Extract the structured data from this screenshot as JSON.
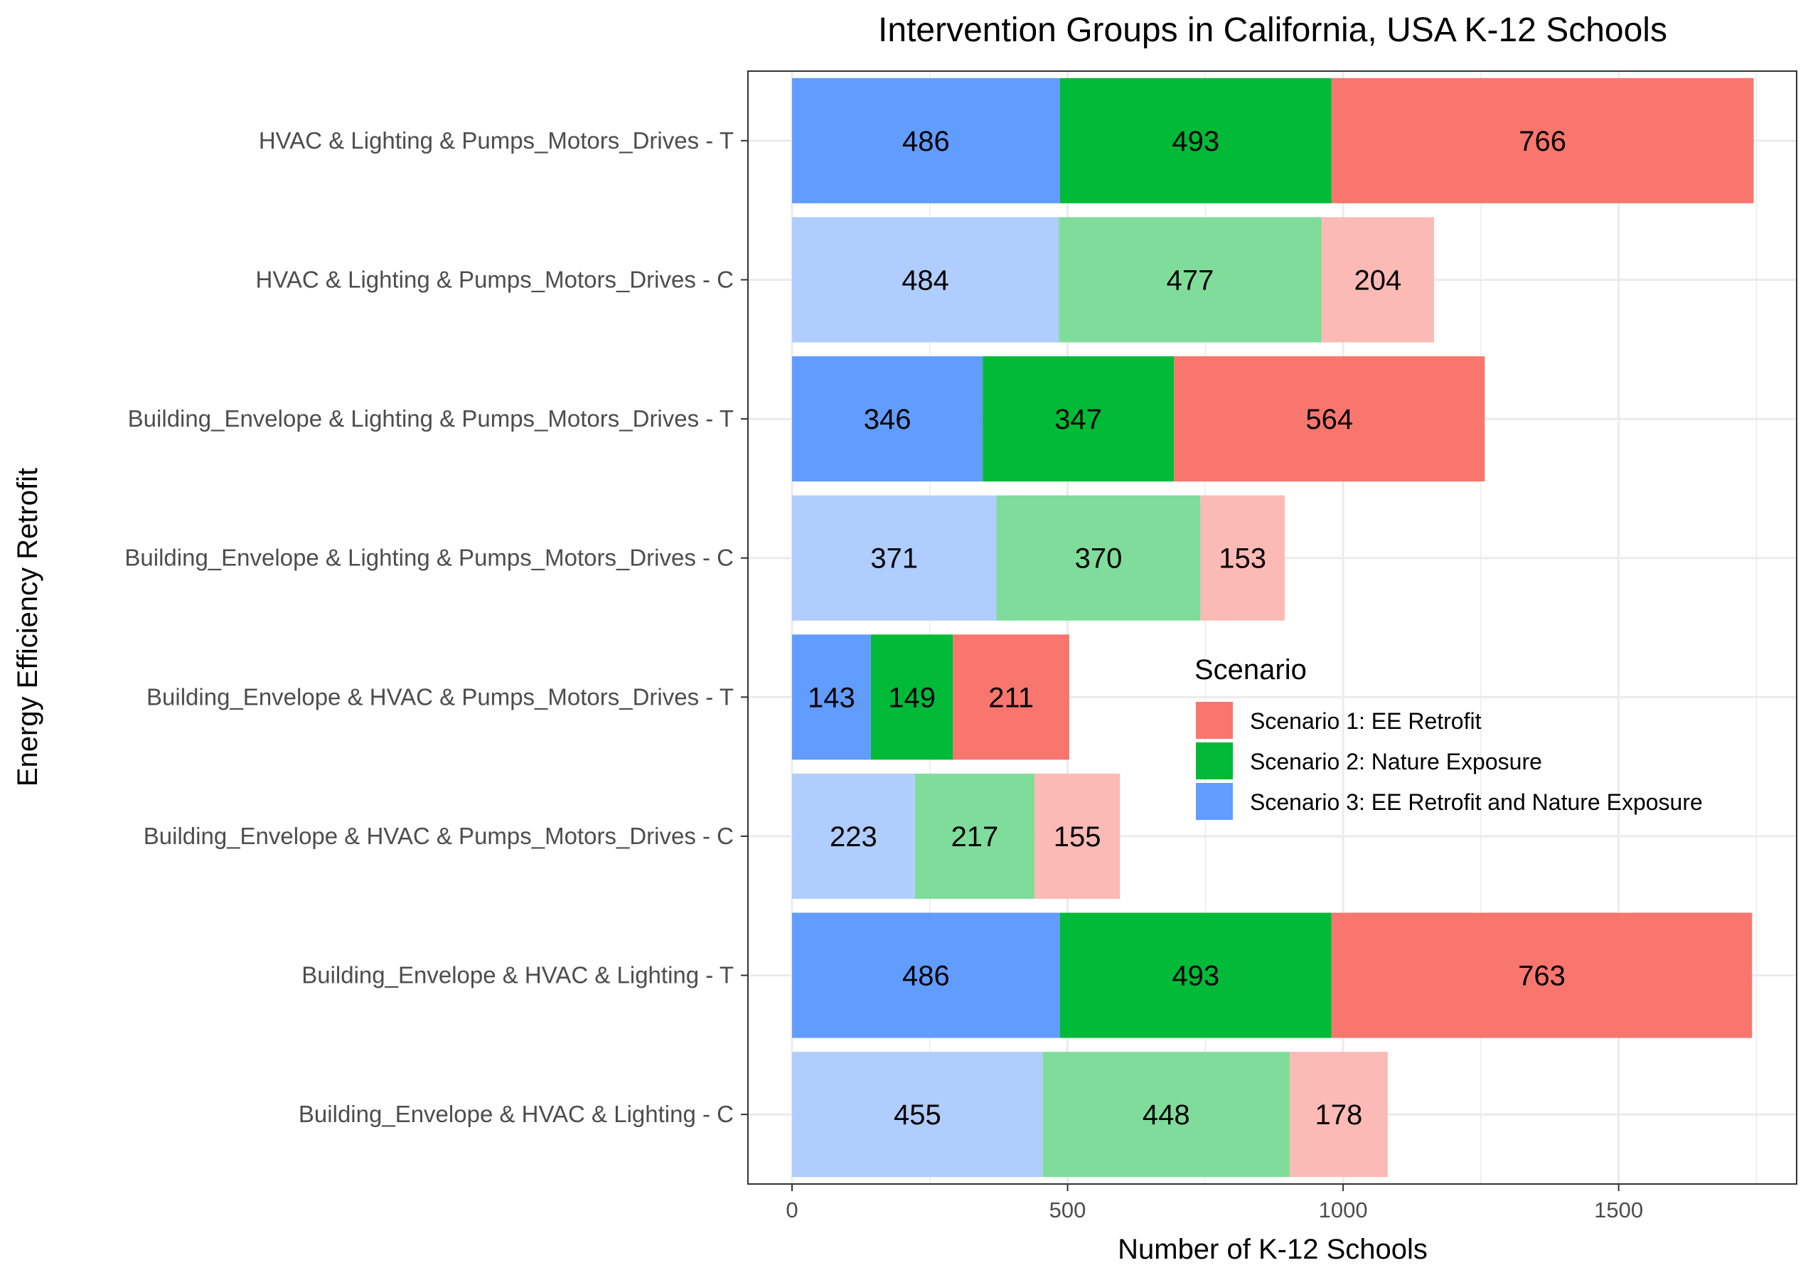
{
  "chart_data": {
    "type": "bar",
    "orientation": "horizontal",
    "stacked": true,
    "title": "Intervention Groups in California, USA K-12 Schools",
    "xlabel": "Number of K-12 Schools",
    "ylabel": "Energy Efficiency Retrofit",
    "xlim": [
      0,
      1830
    ],
    "x_ticks": [
      0,
      500,
      1000,
      1500
    ],
    "grid": true,
    "categories": [
      "HVAC & Lighting & Pumps_Motors_Drives - T",
      "HVAC & Lighting & Pumps_Motors_Drives - C",
      "Building_Envelope & Lighting & Pumps_Motors_Drives - T",
      "Building_Envelope & Lighting & Pumps_Motors_Drives - C",
      "Building_Envelope & HVAC & Pumps_Motors_Drives - T",
      "Building_Envelope & HVAC & Pumps_Motors_Drives - C",
      "Building_Envelope & HVAC & Lighting - T",
      "Building_Envelope & HVAC & Lighting - C"
    ],
    "category_group": [
      "T",
      "C",
      "T",
      "C",
      "T",
      "C",
      "T",
      "C"
    ],
    "series": [
      {
        "name": "Scenario 3: EE Retrofit and Nature Exposure",
        "color": "#619CFF",
        "color_control": "#B0CDFF",
        "values": [
          486,
          484,
          346,
          371,
          143,
          223,
          486,
          455
        ]
      },
      {
        "name": "Scenario 2: Nature Exposure",
        "color": "#00BA38",
        "color_control": "#80DC9B",
        "values": [
          493,
          477,
          347,
          370,
          149,
          217,
          493,
          448
        ]
      },
      {
        "name": "Scenario 1: EE Retrofit",
        "color": "#F8766D",
        "color_control": "#FBBAB6",
        "values": [
          766,
          204,
          564,
          153,
          211,
          155,
          763,
          178
        ]
      }
    ],
    "legend": {
      "title": "Scenario",
      "placement": "inside-right",
      "entries": [
        {
          "label": "Scenario 1: EE Retrofit",
          "color": "#F8766D"
        },
        {
          "label": "Scenario 2: Nature Exposure",
          "color": "#00BA38"
        },
        {
          "label": "Scenario 3: EE Retrofit and Nature Exposure",
          "color": "#619CFF"
        }
      ]
    }
  }
}
